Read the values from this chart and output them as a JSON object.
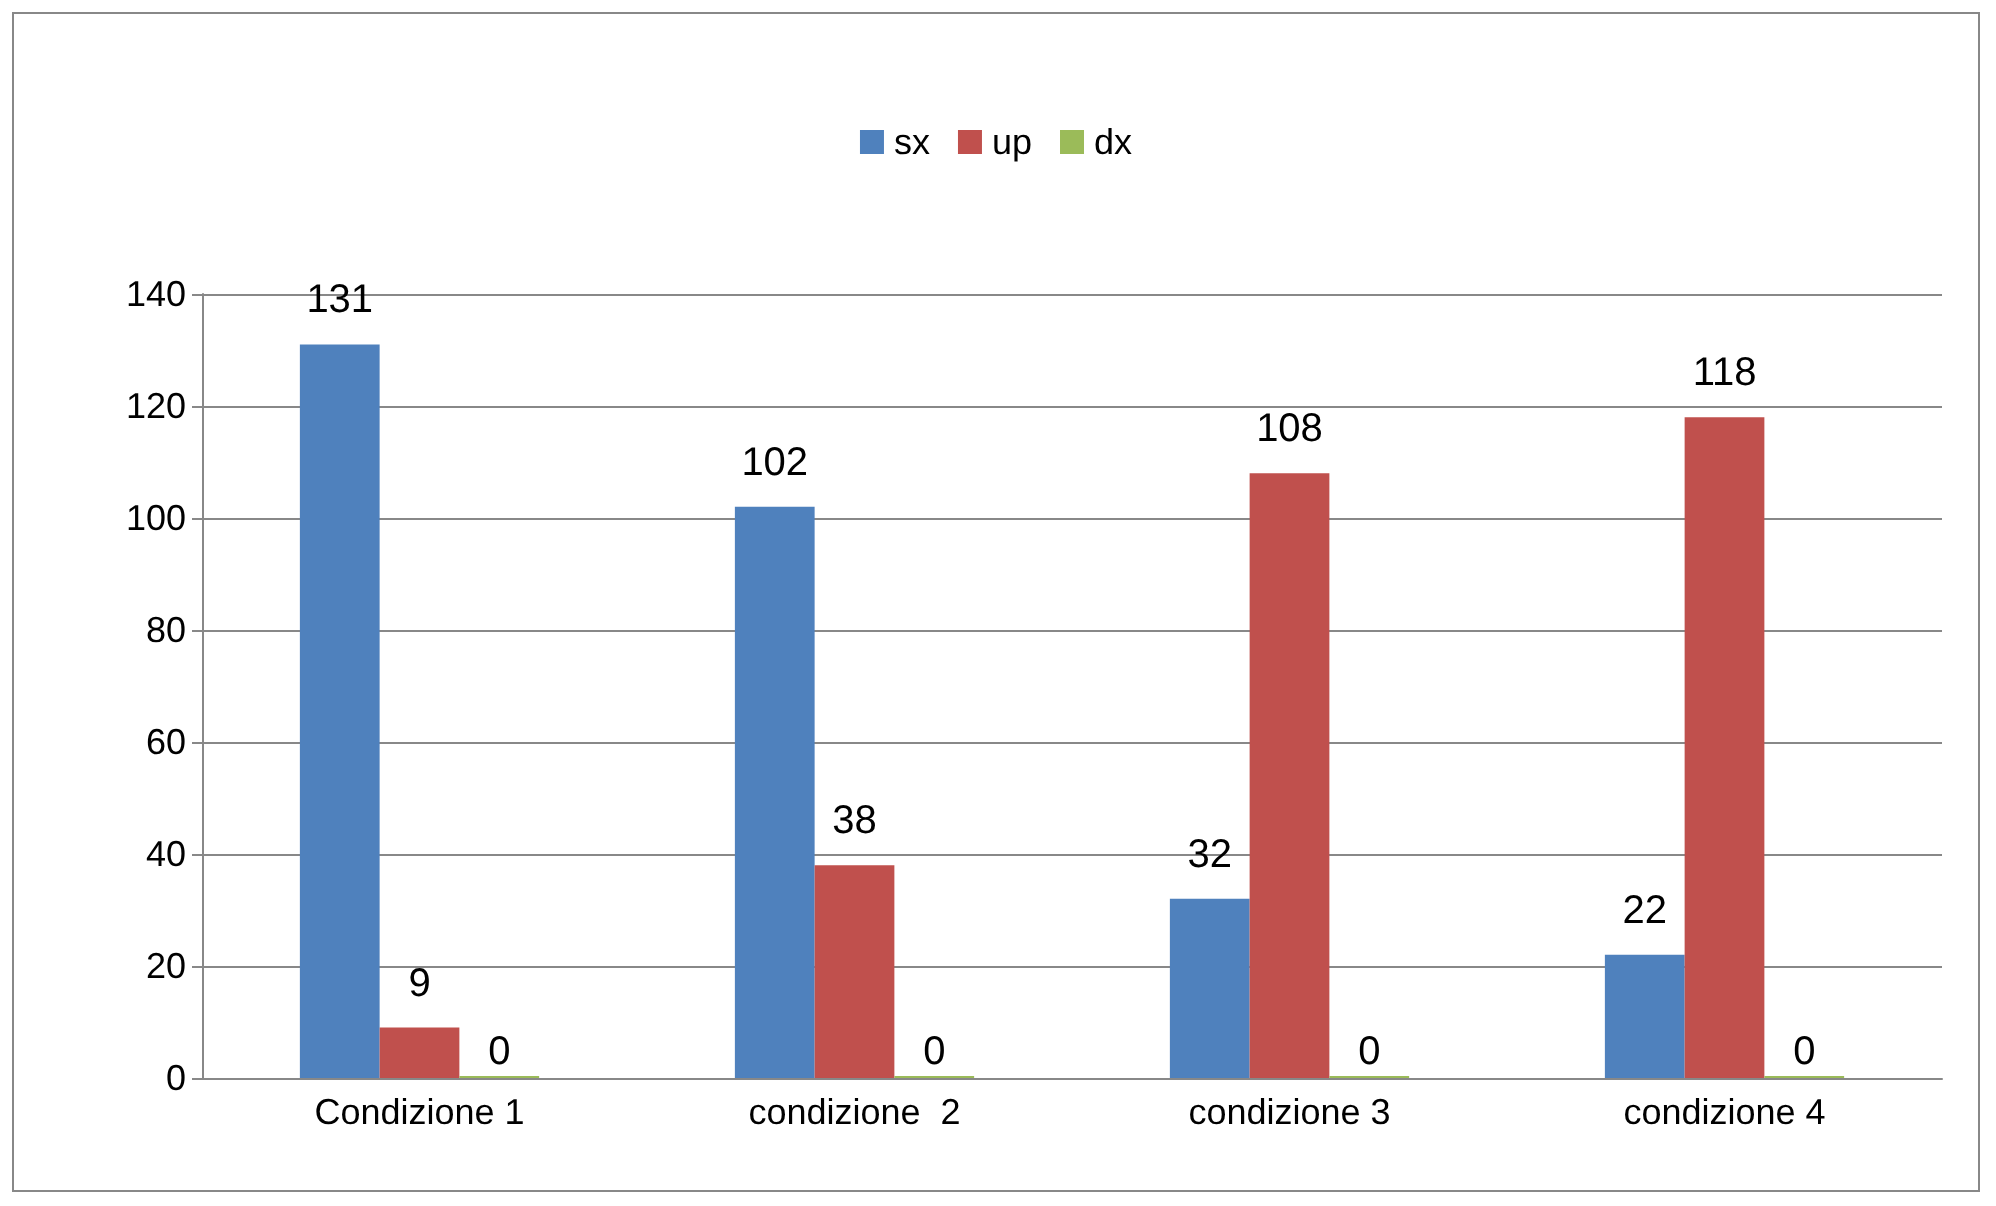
{
  "chart_data": {
    "type": "bar",
    "categories": [
      "Condizione 1",
      "condizione  2",
      "condizione 3",
      "condizione 4"
    ],
    "series": [
      {
        "name": "sx",
        "color": "#4f81bd",
        "values": [
          131,
          102,
          32,
          22
        ]
      },
      {
        "name": "up",
        "color": "#c0504d",
        "values": [
          9,
          38,
          108,
          118
        ]
      },
      {
        "name": "dx",
        "color": "#9bbb59",
        "values": [
          0,
          0,
          0,
          0
        ]
      }
    ],
    "ylim": [
      0,
      140
    ],
    "yticks": [
      0,
      20,
      40,
      60,
      80,
      100,
      120,
      140
    ],
    "grid": "y",
    "legend": "top",
    "data_labels": true
  }
}
